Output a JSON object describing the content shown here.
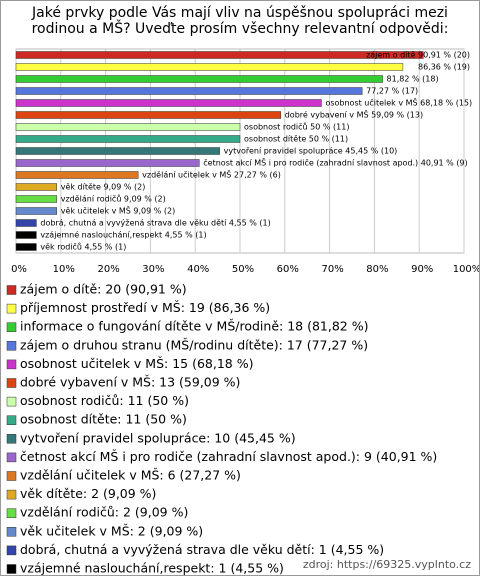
{
  "chart_data": {
    "type": "bar",
    "orientation": "horizontal",
    "title": "Jaké prvky podle Vás mají vliv na úspěšnou spolupráci mezi rodinou a MŠ? Uveďte prosím všechny relevantní odpovědi:",
    "categories": [
      "zájem o dítě: 20 (90,91 %)",
      "příjemnost prostředí v MŠ: 19 (86,36 %)",
      "informace o fungování dítěte v MŠ/rodině: 18 (81,82 %)",
      "zájem o druhou stranu (MŠ/rodinu dítěte): 17 (77,27 %)",
      "osobnost učitelek v MŠ: 15 (68,18 %)",
      "dobré vybavení v MŠ: 13 (59,09 %)",
      "osobnost rodičů: 11 (50 %)",
      "osobnost dítěte: 11 (50 %)",
      "vytvoření pravidel spolupráce: 10 (45,45 %)",
      "četnost akcí MŠ i pro rodiče (zahradní slavnost apod.): 9 (40,91 %)",
      "vzdělání učitelek v MŠ: 6 (27,27 %)",
      "věk dítěte: 2 (9,09 %)",
      "vzdělání rodičů: 2 (9,09 %)",
      "věk učitelek v MŠ: 2 (9,09 %)",
      "dobrá, chutná a vyvýžená strava dle věku dětí: 1 (4,55 %)",
      "vzájemné naslouchání,respekt: 1 (4,55 %)",
      "věk rodičů: 1 (4,55 %)"
    ],
    "values": [
      90.91,
      86.36,
      81.82,
      77.27,
      68.18,
      59.09,
      50,
      50,
      45.45,
      40.91,
      27.27,
      9.09,
      9.09,
      9.09,
      4.55,
      4.55,
      4.55
    ],
    "value_labels": [
      "zájem o dítě 90,91 % (20)",
      "86,36 % (19)",
      "81,82 % (18)",
      "77,27 % (17)",
      "osobnost učitelek v MŠ 68,18 % (15)",
      "dobré vybavení v MŠ 59,09 % (13)",
      "osobnost rodičů 50 % (11)",
      "osobnost dítěte 50 % (11)",
      "vytvoření pravidel spolupráce 45,45 % (10)",
      "četnost akcí MŠ i pro rodiče (zahradní slavnost apod.) 40,91 % (9)",
      "vzdělání učitelek v MŠ 27,27 % (6)",
      "věk dítěte 9,09 % (2)",
      "vzdělání rodičů 9,09 % (2)",
      "věk učitelek v MŠ 9,09 % (2)",
      "dobrá, chutná a vyvýžená strava dle věku dětí 4,55 % (1)",
      "vzájemné naslouchání,respekt 4,55 % (1)",
      "věk rodičů 4,55 % (1)"
    ],
    "colors": [
      "#cc2a22",
      "#ffff44",
      "#33cc33",
      "#5577dd",
      "#cc33cc",
      "#dd4411",
      "#ccffaa",
      "#33aa88",
      "#337777",
      "#9966cc",
      "#dd7722",
      "#ddaa22",
      "#66dd44",
      "#6688cc",
      "#3344aa",
      "#000000",
      "#000000"
    ],
    "xlim": [
      0,
      100
    ],
    "xticks": [
      {
        "value": 0,
        "label": "0%"
      },
      {
        "value": 10,
        "label": "10%"
      },
      {
        "value": 20,
        "label": "20%"
      },
      {
        "value": 30,
        "label": "30%"
      },
      {
        "value": 40,
        "label": "40%"
      },
      {
        "value": 50,
        "label": "50%"
      },
      {
        "value": 60,
        "label": "60%"
      },
      {
        "value": 70,
        "label": "70%"
      },
      {
        "value": 80,
        "label": "80%"
      },
      {
        "value": 90,
        "label": "90%"
      },
      {
        "value": 100,
        "label": "100%"
      }
    ],
    "grid": true,
    "source": "zdroj: https://69325.vyplnto.cz"
  }
}
